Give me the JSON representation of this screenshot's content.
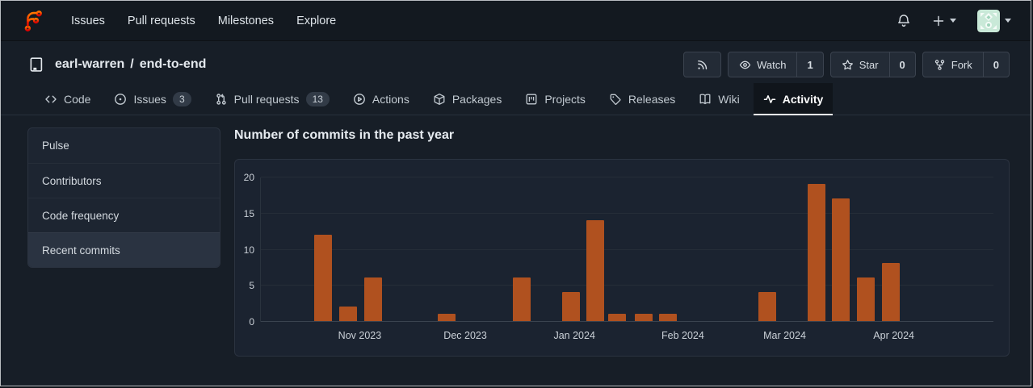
{
  "navbar": {
    "links": [
      "Issues",
      "Pull requests",
      "Milestones",
      "Explore"
    ],
    "icons": [
      "forgejo-logo",
      "bell-icon",
      "plus-icon",
      "caret-down-icon",
      "avatar-identicon"
    ]
  },
  "repo": {
    "owner": "earl-warren",
    "separator": "/",
    "name": "end-to-end",
    "icon": "repo-icon"
  },
  "actions": {
    "rss_icon": "rss-icon",
    "watch": {
      "label": "Watch",
      "count": "1",
      "icon": "eye-icon"
    },
    "star": {
      "label": "Star",
      "count": "0",
      "icon": "star-icon"
    },
    "fork": {
      "label": "Fork",
      "count": "0",
      "icon": "fork-icon"
    }
  },
  "tabs": {
    "items": [
      {
        "label": "Code",
        "icon": "code-icon"
      },
      {
        "label": "Issues",
        "badge": "3",
        "icon": "issue-icon"
      },
      {
        "label": "Pull requests",
        "badge": "13",
        "icon": "pull-request-icon"
      },
      {
        "label": "Actions",
        "icon": "play-circle-icon"
      },
      {
        "label": "Packages",
        "icon": "package-icon"
      },
      {
        "label": "Projects",
        "icon": "project-board-icon"
      },
      {
        "label": "Releases",
        "icon": "tag-icon"
      },
      {
        "label": "Wiki",
        "icon": "book-icon"
      },
      {
        "label": "Activity",
        "icon": "pulse-icon",
        "active": true
      }
    ]
  },
  "sidebar": {
    "items": [
      {
        "label": "Pulse"
      },
      {
        "label": "Contributors"
      },
      {
        "label": "Code frequency"
      },
      {
        "label": "Recent commits",
        "selected": true
      }
    ]
  },
  "main": {
    "title": "Number of commits in the past year"
  },
  "chart_data": {
    "type": "bar",
    "title": "Number of commits in the past year",
    "xlabel": "",
    "ylabel": "",
    "ylim": [
      0,
      20
    ],
    "y_ticks": [
      0,
      5,
      10,
      15,
      20
    ],
    "grid": true,
    "bar_color": "#b0511f",
    "x_ticks": [
      {
        "label": "Nov 2023",
        "pos": 0.135
      },
      {
        "label": "Dec 2023",
        "pos": 0.279
      },
      {
        "label": "Jan 2024",
        "pos": 0.428
      },
      {
        "label": "Feb 2024",
        "pos": 0.576
      },
      {
        "label": "Mar 2024",
        "pos": 0.715
      },
      {
        "label": "Apr 2024",
        "pos": 0.864
      }
    ],
    "bars": [
      {
        "pos": 0.085,
        "value": 12
      },
      {
        "pos": 0.119,
        "value": 2
      },
      {
        "pos": 0.153,
        "value": 6
      },
      {
        "pos": 0.254,
        "value": 1
      },
      {
        "pos": 0.356,
        "value": 6
      },
      {
        "pos": 0.423,
        "value": 4
      },
      {
        "pos": 0.456,
        "value": 14
      },
      {
        "pos": 0.486,
        "value": 1
      },
      {
        "pos": 0.523,
        "value": 1
      },
      {
        "pos": 0.556,
        "value": 1
      },
      {
        "pos": 0.691,
        "value": 4
      },
      {
        "pos": 0.759,
        "value": 19
      },
      {
        "pos": 0.792,
        "value": 17
      },
      {
        "pos": 0.826,
        "value": 6
      },
      {
        "pos": 0.86,
        "value": 8
      }
    ]
  },
  "colors": {
    "brand_orange": "#ff6b00",
    "brand_red": "#d40000",
    "bar": "#b0511f",
    "page_bg": "#171e27",
    "nav_bg": "#131920",
    "card_bg": "#1d2531",
    "selected_bg": "#2a3341"
  }
}
